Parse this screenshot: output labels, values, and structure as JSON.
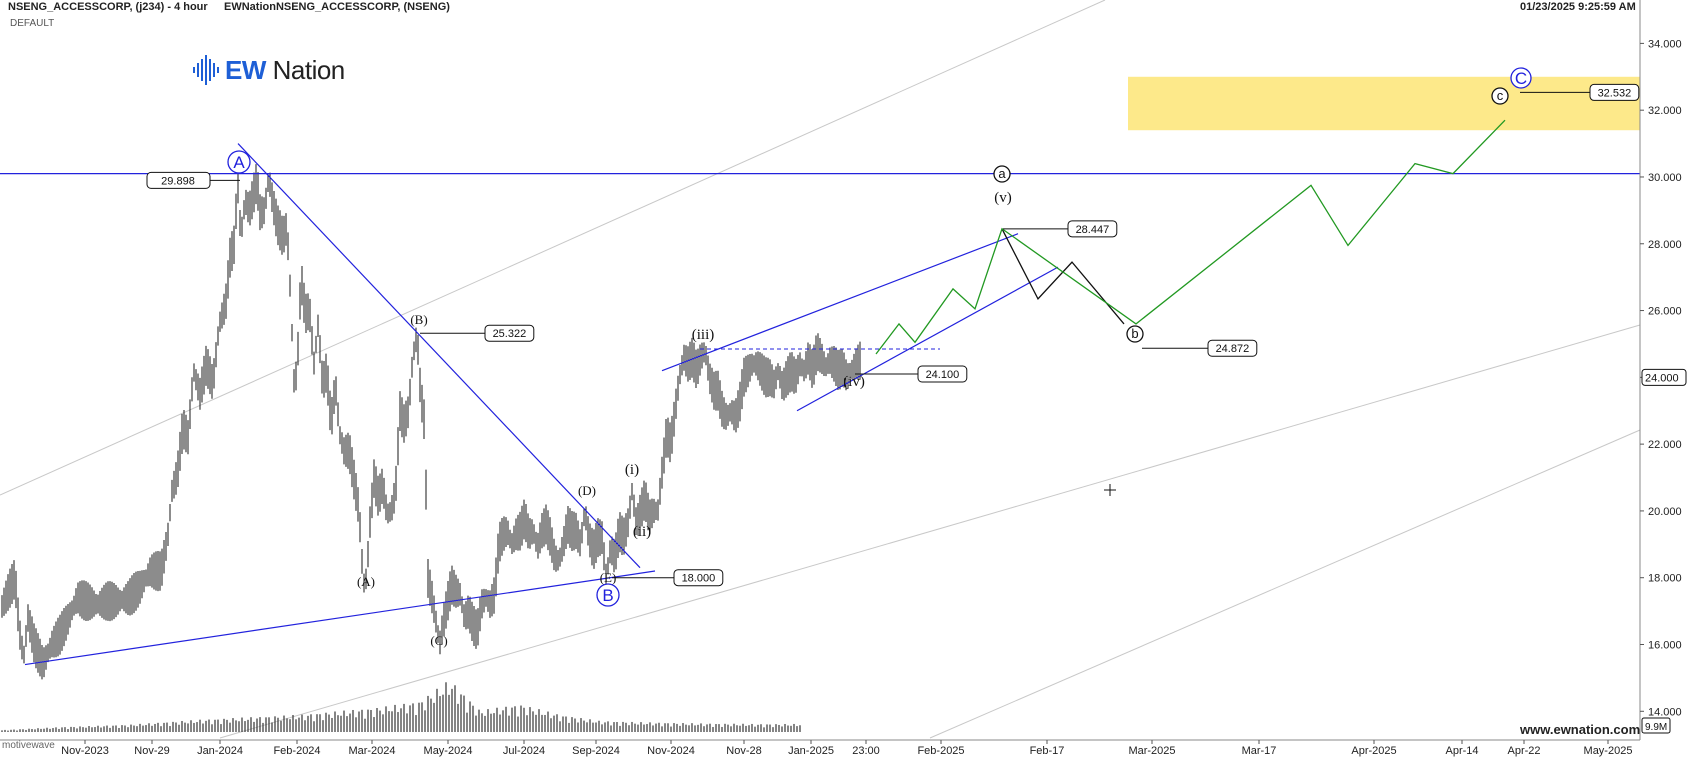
{
  "header": {
    "symbol": "NSENG_ACCESSCORP, (j234) - 4 hour",
    "source": "EWNationNSENG_ACCESSCORP, (NSENG)",
    "template": "DEFAULT",
    "timestamp": "01/23/2025 9:25:59 AM"
  },
  "logo": {
    "ew": "EW",
    "rest": " Nation",
    "icon": "soundwave-icon"
  },
  "footer": {
    "site": "www.ewnation.com",
    "watermark": "motivewave"
  },
  "colors": {
    "price": "#1a1a1a",
    "trend": "#2222dd",
    "projection": "#229922",
    "target_zone": "#fde98a",
    "channel": "#c8c8c8"
  },
  "chart_data": {
    "type": "line",
    "y_axis": {
      "min": 13.2,
      "max": 35.0,
      "ticks": [
        "14.000",
        "16.000",
        "18.000",
        "20.000",
        "22.000",
        "24.000",
        "26.000",
        "28.000",
        "30.000",
        "32.000",
        "34.000"
      ],
      "tick_values": [
        14,
        16,
        18,
        20,
        22,
        24,
        26,
        28,
        30,
        32,
        34
      ],
      "current_price_tag": "24.000",
      "volume_tag": "9.9M"
    },
    "x_axis": {
      "ticks": [
        "Nov-2023",
        "Nov-29",
        "Jan-2024",
        "Feb-2024",
        "Mar-2024",
        "May-2024",
        "Jul-2024",
        "Sep-2024",
        "Nov-2024",
        "Nov-28",
        "Jan-2025",
        "23:00",
        "Feb-2025",
        "Feb-17",
        "Mar-2025",
        "Mar-17",
        "Apr-2025",
        "Apr-14",
        "Apr-22",
        "May-2025"
      ]
    },
    "price_path": [
      [
        0,
        17.0
      ],
      [
        8,
        17.6
      ],
      [
        14,
        18.0
      ],
      [
        18,
        16.4
      ],
      [
        22,
        15.6
      ],
      [
        26,
        16.8
      ],
      [
        32,
        16.0
      ],
      [
        40,
        15.4
      ],
      [
        48,
        16.0
      ],
      [
        56,
        16.3
      ],
      [
        64,
        16.8
      ],
      [
        72,
        17.4
      ],
      [
        80,
        17.3
      ],
      [
        90,
        17.2
      ],
      [
        100,
        17.3
      ],
      [
        110,
        17.3
      ],
      [
        120,
        17.4
      ],
      [
        130,
        17.7
      ],
      [
        140,
        18.2
      ],
      [
        150,
        18.2
      ],
      [
        156,
        19.2
      ],
      [
        160,
        20.6
      ],
      [
        165,
        21.1
      ],
      [
        170,
        22.5
      ],
      [
        175,
        22.2
      ],
      [
        180,
        24.2
      ],
      [
        186,
        23.5
      ],
      [
        192,
        24.4
      ],
      [
        198,
        23.8
      ],
      [
        204,
        25.6
      ],
      [
        210,
        26.2
      ],
      [
        214,
        27.6
      ],
      [
        218,
        28.0
      ],
      [
        221,
        29.9
      ],
      [
        224,
        28.2
      ],
      [
        228,
        29.3
      ],
      [
        232,
        29.0
      ],
      [
        236,
        29.5
      ],
      [
        239,
        29.9
      ],
      [
        242,
        28.9
      ],
      [
        246,
        29.0
      ],
      [
        250,
        30.0
      ],
      [
        254,
        29.2
      ],
      [
        258,
        28.6
      ],
      [
        263,
        28.2
      ],
      [
        267,
        28.5
      ],
      [
        270,
        26.6
      ],
      [
        274,
        23.5
      ],
      [
        277,
        24.7
      ],
      [
        280,
        27.0
      ],
      [
        284,
        25.9
      ],
      [
        288,
        26.0
      ],
      [
        292,
        24.4
      ],
      [
        296,
        25.6
      ],
      [
        300,
        23.8
      ],
      [
        304,
        24.2
      ],
      [
        308,
        22.6
      ],
      [
        312,
        23.8
      ],
      [
        316,
        22.3
      ],
      [
        320,
        21.8
      ],
      [
        325,
        21.8
      ],
      [
        330,
        20.8
      ],
      [
        334,
        20.0
      ],
      [
        338,
        17.8
      ],
      [
        341,
        18.0
      ],
      [
        344,
        19.6
      ],
      [
        348,
        21.0
      ],
      [
        352,
        20.4
      ],
      [
        356,
        20.8
      ],
      [
        360,
        19.9
      ],
      [
        364,
        20.0
      ],
      [
        368,
        20.6
      ],
      [
        372,
        23.0
      ],
      [
        376,
        22.6
      ],
      [
        380,
        23.0
      ],
      [
        384,
        24.6
      ],
      [
        388,
        25.3
      ],
      [
        391,
        23.6
      ],
      [
        395,
        22.6
      ],
      [
        398,
        18.0
      ],
      [
        402,
        17.4
      ],
      [
        406,
        16.6
      ],
      [
        409,
        16.0
      ],
      [
        412,
        16.6
      ],
      [
        416,
        17.2
      ],
      [
        420,
        17.8
      ],
      [
        424,
        17.6
      ],
      [
        428,
        17.5
      ],
      [
        432,
        16.8
      ],
      [
        436,
        17.0
      ],
      [
        440,
        16.6
      ],
      [
        444,
        16.4
      ],
      [
        448,
        17.2
      ],
      [
        452,
        17.4
      ],
      [
        456,
        17.2
      ],
      [
        460,
        17.5
      ],
      [
        464,
        19.0
      ],
      [
        468,
        19.3
      ],
      [
        472,
        19.4
      ],
      [
        476,
        19.0
      ],
      [
        480,
        19.3
      ],
      [
        484,
        19.4
      ],
      [
        488,
        19.8
      ],
      [
        492,
        19.3
      ],
      [
        496,
        19.4
      ],
      [
        500,
        18.9
      ],
      [
        504,
        19.4
      ],
      [
        508,
        19.6
      ],
      [
        512,
        19.2
      ],
      [
        516,
        18.6
      ],
      [
        520,
        18.5
      ],
      [
        524,
        19.0
      ],
      [
        528,
        19.6
      ],
      [
        532,
        19.4
      ],
      [
        536,
        19.4
      ],
      [
        540,
        19.0
      ],
      [
        544,
        20.0
      ],
      [
        548,
        19.2
      ],
      [
        552,
        18.8
      ],
      [
        556,
        19.2
      ],
      [
        560,
        19.2
      ],
      [
        564,
        18.0
      ],
      [
        568,
        18.9
      ],
      [
        572,
        18.6
      ],
      [
        576,
        19.4
      ],
      [
        580,
        19.2
      ],
      [
        584,
        19.6
      ],
      [
        588,
        20.6
      ],
      [
        592,
        19.6
      ],
      [
        596,
        20.0
      ],
      [
        600,
        20.4
      ],
      [
        604,
        19.8
      ],
      [
        608,
        20.0
      ],
      [
        612,
        20.0
      ],
      [
        616,
        21.2
      ],
      [
        620,
        22.3
      ],
      [
        624,
        22.0
      ],
      [
        628,
        23.0
      ],
      [
        632,
        24.0
      ],
      [
        636,
        24.6
      ],
      [
        640,
        24.4
      ],
      [
        644,
        24.6
      ],
      [
        648,
        24.2
      ],
      [
        652,
        24.6
      ],
      [
        656,
        24.8
      ],
      [
        660,
        24.0
      ],
      [
        664,
        23.6
      ],
      [
        668,
        23.6
      ],
      [
        672,
        23.0
      ],
      [
        676,
        22.8
      ],
      [
        680,
        23.0
      ],
      [
        684,
        22.8
      ],
      [
        688,
        23.2
      ],
      [
        692,
        24.0
      ],
      [
        696,
        24.2
      ],
      [
        700,
        24.4
      ],
      [
        704,
        24.4
      ],
      [
        708,
        24.2
      ],
      [
        712,
        24.0
      ],
      [
        716,
        24.0
      ],
      [
        720,
        23.8
      ],
      [
        724,
        24.2
      ],
      [
        728,
        23.7
      ],
      [
        732,
        24.0
      ],
      [
        736,
        24.2
      ],
      [
        740,
        24.0
      ],
      [
        744,
        24.4
      ],
      [
        748,
        24.2
      ],
      [
        752,
        24.6
      ],
      [
        756,
        24.2
      ],
      [
        760,
        24.8
      ],
      [
        764,
        24.6
      ],
      [
        768,
        24.3
      ],
      [
        772,
        24.5
      ],
      [
        776,
        24.4
      ],
      [
        780,
        24.2
      ],
      [
        784,
        24.3
      ],
      [
        788,
        24.0
      ],
      [
        792,
        24.2
      ],
      [
        796,
        24.4
      ],
      [
        800,
        24.5
      ]
    ],
    "volume": {
      "sections": [
        [
          0,
          3
        ],
        [
          60,
          8
        ],
        [
          130,
          12
        ],
        [
          200,
          20
        ],
        [
          300,
          28
        ],
        [
          380,
          40
        ],
        [
          420,
          50
        ],
        [
          450,
          85
        ],
        [
          480,
          35
        ],
        [
          520,
          45
        ],
        [
          560,
          28
        ],
        [
          600,
          18
        ],
        [
          640,
          16
        ],
        [
          700,
          14
        ],
        [
          760,
          13
        ],
        [
          800,
          13
        ]
      ]
    },
    "labels": {
      "wave_A": "A",
      "wave_B": "B",
      "wave_C": "C",
      "sub_B": "(B)",
      "sub_A": "(A)",
      "sub_C": "(C)",
      "sub_D": "(D)",
      "sub_E": "(E)",
      "i": "(i)",
      "ii": "(ii)",
      "iii": "(iii)",
      "iv": "(iv)",
      "v": "(v)",
      "a": "a",
      "b": "b",
      "c": "c"
    },
    "price_tags": {
      "high_A": "29.898",
      "high_B": "25.322",
      "low_E": "18.000",
      "iv_low": "24.100",
      "v_high": "28.447",
      "b_low": "24.872",
      "c_target": "32.532"
    },
    "target_zone": {
      "low": 31.4,
      "high": 33.0
    },
    "resistance_level": 30.1,
    "projection_black": [
      [
        28.447
      ],
      [
        26.35
      ],
      [
        27.45
      ],
      [
        25.6
      ]
    ],
    "projection_green": [
      [
        24.7
      ],
      [
        25.6
      ],
      [
        25.05
      ],
      [
        26.65
      ],
      [
        26.05
      ],
      [
        28.45
      ],
      [
        25.6
      ],
      [
        29.75
      ],
      [
        27.95
      ],
      [
        30.4
      ],
      [
        30.1
      ],
      [
        31.7
      ]
    ]
  }
}
